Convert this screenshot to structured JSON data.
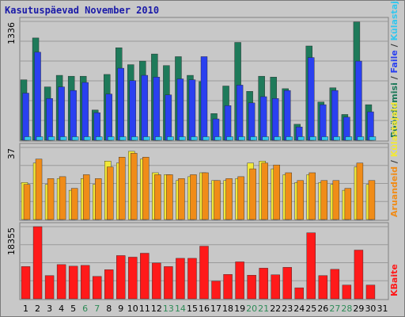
{
  "title": "Kasutuspäevad November 2010",
  "colors": {
    "background": "#c8c8c8",
    "panel_border": "#808080",
    "gridline": "#9a9a9a",
    "title_text": "#1a1aa8",
    "weekday_text": "#000000",
    "weekend_text": "#2e8b57",
    "separator_text": "#333333"
  },
  "chart_data": [
    {
      "type": "bar",
      "panel": "top",
      "y_tick_label": "1336",
      "ylim": [
        0,
        1336
      ],
      "grid": true,
      "categories": [
        "1",
        "2",
        "3",
        "4",
        "5",
        "6",
        "7",
        "8",
        "9",
        "10",
        "11",
        "12",
        "13",
        "14",
        "15",
        "16",
        "17",
        "18",
        "19",
        "20",
        "21",
        "22",
        "23",
        "24",
        "25",
        "26",
        "27",
        "28",
        "29",
        "30",
        "31"
      ],
      "series": [
        {
          "name": "Pöördumisi",
          "color": "#1e7a5a",
          "values": [
            680,
            1150,
            600,
            730,
            720,
            720,
            340,
            740,
            1040,
            850,
            890,
            970,
            840,
            940,
            730,
            660,
            300,
            610,
            1100,
            550,
            720,
            710,
            580,
            180,
            1060,
            430,
            590,
            290,
            1330,
            400,
            0
          ]
        },
        {
          "name": "Faile",
          "color": "#2a40f0",
          "values": [
            530,
            990,
            470,
            600,
            560,
            650,
            310,
            520,
            810,
            670,
            730,
            710,
            510,
            690,
            680,
            940,
            240,
            390,
            620,
            420,
            490,
            470,
            560,
            150,
            930,
            400,
            560,
            260,
            890,
            320,
            0
          ]
        },
        {
          "name": "Külastajaid",
          "color": "#33c7ee",
          "values": [
            40,
            40,
            40,
            40,
            40,
            40,
            40,
            40,
            40,
            40,
            40,
            40,
            40,
            40,
            40,
            40,
            40,
            40,
            40,
            40,
            40,
            40,
            40,
            40,
            40,
            40,
            40,
            40,
            40,
            40,
            0
          ]
        }
      ],
      "legend": [
        {
          "text": "Pöördumisi",
          "color": "#1e7a5a"
        },
        {
          "text": "Faile",
          "color": "#2a40f0"
        },
        {
          "text": "Külastajaid",
          "color": "#33c7ee"
        }
      ]
    },
    {
      "type": "bar",
      "panel": "middle",
      "y_tick_label": "37",
      "ylim": [
        0,
        37
      ],
      "grid": true,
      "categories": [
        "1",
        "2",
        "3",
        "4",
        "5",
        "6",
        "7",
        "8",
        "9",
        "10",
        "11",
        "12",
        "13",
        "14",
        "15",
        "16",
        "17",
        "18",
        "19",
        "20",
        "21",
        "22",
        "23",
        "24",
        "25",
        "26",
        "27",
        "28",
        "29",
        "30",
        "31"
      ],
      "series": [
        {
          "name": "Külastajaid",
          "color": "#f2e838",
          "values": [
            19,
            29,
            18,
            21,
            15,
            21,
            18,
            30,
            29,
            35,
            31,
            24,
            23,
            20,
            22,
            24,
            20,
            20,
            21,
            29,
            30,
            26,
            23,
            19,
            23,
            19,
            18,
            15,
            27,
            18,
            0
          ]
        },
        {
          "name": "Aruandeid",
          "color": "#f08c18",
          "values": [
            18,
            31,
            21,
            22,
            16,
            23,
            21,
            27,
            32,
            34,
            32,
            23,
            23,
            21,
            23,
            24,
            20,
            21,
            22,
            26,
            29,
            28,
            24,
            20,
            24,
            20,
            20,
            16,
            29,
            20,
            0
          ]
        }
      ],
      "legend": [
        {
          "text": "Aruandeid",
          "color": "#f08c18"
        },
        {
          "text": "Külastajaid",
          "color": "#f2e838"
        }
      ]
    },
    {
      "type": "bar",
      "panel": "bottom",
      "y_tick_label": "18355",
      "ylim": [
        0,
        18355
      ],
      "grid": true,
      "categories": [
        "1",
        "2",
        "3",
        "4",
        "5",
        "6",
        "7",
        "8",
        "9",
        "10",
        "11",
        "12",
        "13",
        "14",
        "15",
        "16",
        "17",
        "18",
        "19",
        "20",
        "21",
        "22",
        "23",
        "24",
        "25",
        "26",
        "27",
        "28",
        "29",
        "30",
        "31"
      ],
      "weekend_days": [
        "6",
        "7",
        "13",
        "14",
        "20",
        "21",
        "27",
        "28"
      ],
      "series": [
        {
          "name": "KBaite",
          "color": "#ff1a1a",
          "values": [
            8200,
            18355,
            5900,
            8700,
            8300,
            8500,
            5700,
            7400,
            11000,
            10600,
            11600,
            9100,
            8200,
            10300,
            10300,
            13400,
            4500,
            6200,
            9400,
            6000,
            7800,
            6100,
            8000,
            2800,
            16800,
            5900,
            7500,
            3500,
            12400,
            3500,
            0
          ]
        }
      ],
      "legend": [
        {
          "text": "KBaite",
          "color": "#ff1a1a"
        }
      ]
    }
  ]
}
